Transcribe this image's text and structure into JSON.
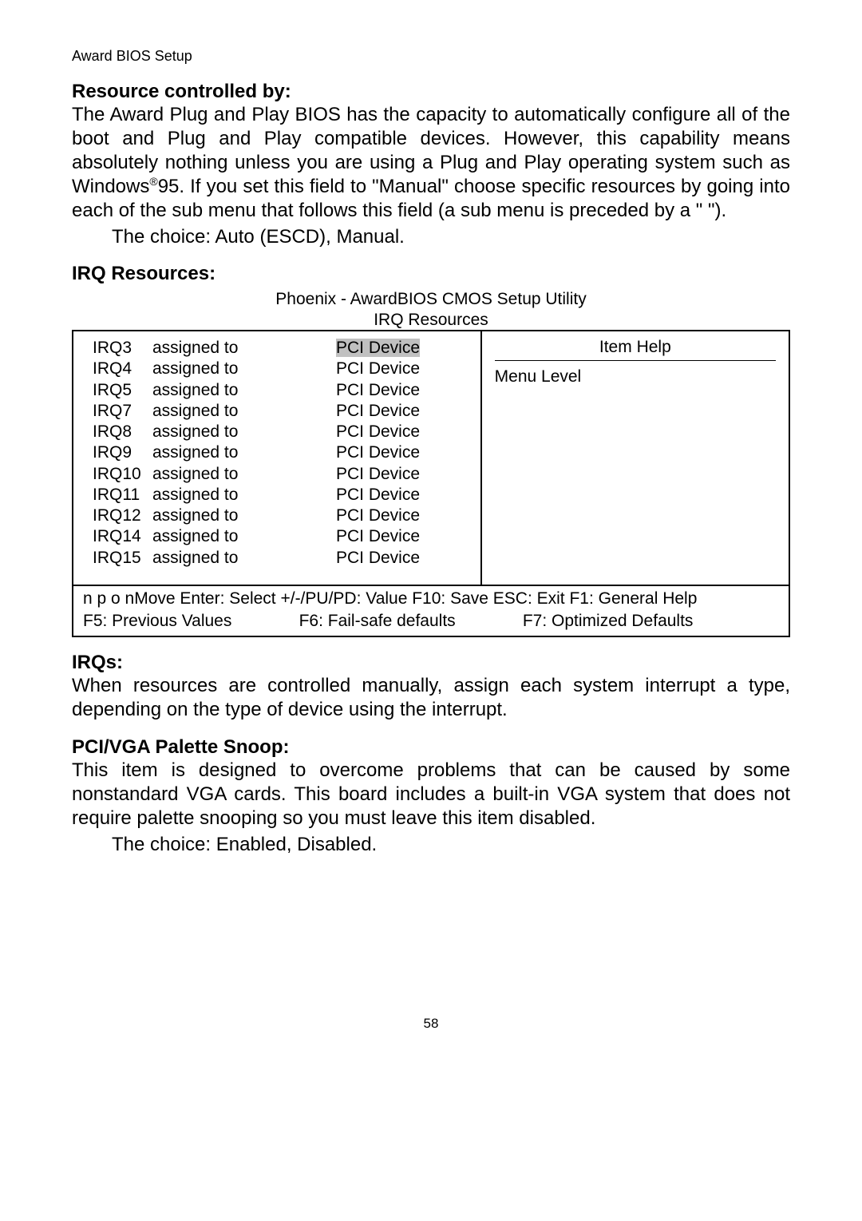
{
  "header": {
    "text": "Award BIOS Setup"
  },
  "sec1": {
    "heading": "Resource controlled by:",
    "para": "The Award Plug and Play BIOS has the capacity to automatically configure all of the boot and Plug and Play compatible devices.  However, this capability means absolutely nothing unless you are using a Plug and Play operating system such as Windows",
    "sup": "®",
    "para_tail": "95.  If you set this field to \"Manual\" choose specific resources by going into each of the sub menu that follows this field (a sub menu is preceded by a \"   \").",
    "choice": "The choice: Auto (ESCD), Manual."
  },
  "sec2": {
    "heading": "IRQ Resources:",
    "bios_title": "Phoenix - AwardBIOS CMOS Setup Utility",
    "bios_subtitle": "IRQ Resources",
    "irq_rows": [
      {
        "name": "IRQ3",
        "assigned": "assigned to",
        "value": "PCI Device",
        "hl": true
      },
      {
        "name": "IRQ4",
        "assigned": "assigned to",
        "value": "PCI Device",
        "hl": false
      },
      {
        "name": "IRQ5",
        "assigned": "assigned to",
        "value": "PCI Device",
        "hl": false
      },
      {
        "name": "IRQ7",
        "assigned": "assigned to",
        "value": "PCI Device",
        "hl": false
      },
      {
        "name": "IRQ8",
        "assigned": "assigned to",
        "value": "PCI Device",
        "hl": false
      },
      {
        "name": "IRQ9",
        "assigned": "assigned to",
        "value": "PCI Device",
        "hl": false
      },
      {
        "name": "IRQ10",
        "assigned": "assigned to",
        "value": "PCI Device",
        "hl": false
      },
      {
        "name": "IRQ11",
        "assigned": "assigned to",
        "value": "PCI Device",
        "hl": false
      },
      {
        "name": "IRQ12",
        "assigned": "assigned to",
        "value": "PCI Device",
        "hl": false
      },
      {
        "name": "IRQ14",
        "assigned": "assigned to",
        "value": "PCI Device",
        "hl": false
      },
      {
        "name": "IRQ15",
        "assigned": "assigned to",
        "value": "PCI Device",
        "hl": false
      }
    ],
    "item_help": "Item Help",
    "menu_level": "Menu Level",
    "footer1": "n p o nMove  Enter: Select  +/-/PU/PD: Value  F10: Save  ESC: Exit  F1: General Help",
    "footer2a": "F5: Previous Values",
    "footer2b": "F6: Fail-safe defaults",
    "footer2c": "F7: Optimized Defaults"
  },
  "sec3": {
    "heading": "IRQs:",
    "para": "When resources are controlled manually, assign each system interrupt a type, depending on the type of device using the interrupt."
  },
  "sec4": {
    "heading": "PCI/VGA Palette Snoop:",
    "para": "This item is designed to overcome problems that can be caused by some nonstandard VGA cards. This board includes a built-in VGA system that does not require palette snooping so you must leave this item disabled.",
    "choice": "The choice: Enabled, Disabled."
  },
  "page_number": "58"
}
